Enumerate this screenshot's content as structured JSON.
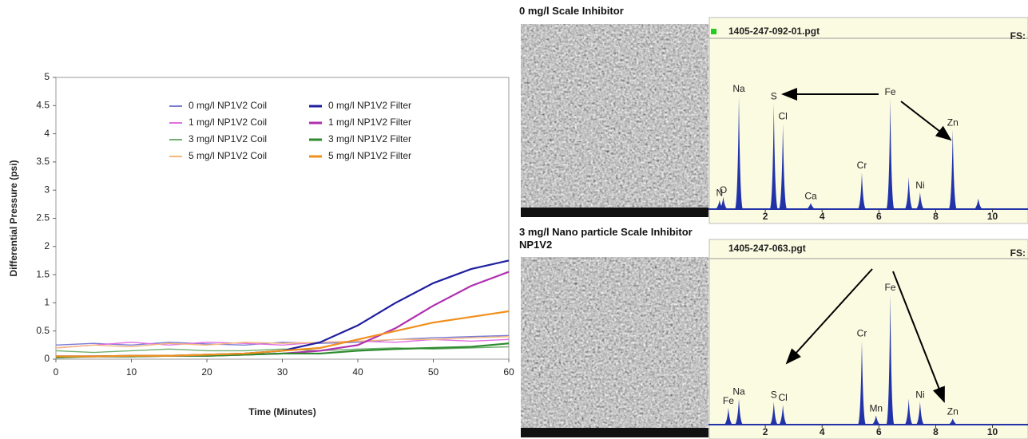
{
  "chart_data": [
    {
      "type": "line",
      "ylabel": "Differential Pressure (psi)",
      "xlabel": "Time (Minutes)",
      "x": [
        0,
        5,
        10,
        15,
        20,
        25,
        30,
        35,
        40,
        45,
        50,
        55,
        60
      ],
      "xlim": [
        0,
        60
      ],
      "xticks": [
        0,
        10,
        20,
        30,
        40,
        50,
        60
      ],
      "ylim": [
        0,
        5
      ],
      "yticks": [
        0,
        0.5,
        1,
        1.5,
        2,
        2.5,
        3,
        3.5,
        4,
        4.5,
        5
      ],
      "legend": "upper center",
      "series": [
        {
          "name": "0 mg/l NP1V2 Coil",
          "color": "#7b7bd6",
          "values": [
            0.25,
            0.28,
            0.25,
            0.3,
            0.27,
            0.25,
            0.3,
            0.28,
            0.3,
            0.35,
            0.38,
            0.4,
            0.42
          ]
        },
        {
          "name": "1 mg/l NP1V2 Coil",
          "color": "#e070e0",
          "values": [
            0.2,
            0.25,
            0.3,
            0.25,
            0.3,
            0.28,
            0.25,
            0.3,
            0.32,
            0.3,
            0.35,
            0.32,
            0.35
          ]
        },
        {
          "name": "3 mg/l NP1V2 Coil",
          "color": "#70b070",
          "values": [
            0.15,
            0.12,
            0.15,
            0.18,
            0.15,
            0.15,
            0.18,
            0.15,
            0.18,
            0.2,
            0.18,
            0.2,
            0.22
          ]
        },
        {
          "name": "5 mg/l NP1V2 Coil",
          "color": "#f5b87a",
          "values": [
            0.2,
            0.25,
            0.22,
            0.28,
            0.25,
            0.3,
            0.28,
            0.3,
            0.32,
            0.35,
            0.35,
            0.38,
            0.4
          ]
        },
        {
          "name": "0 mg/l NP1V2 Filter",
          "color": "#1f1fa0",
          "values": [
            0.05,
            0.05,
            0.06,
            0.06,
            0.08,
            0.1,
            0.15,
            0.3,
            0.6,
            1.0,
            1.35,
            1.6,
            1.75
          ]
        },
        {
          "name": "1 mg/l NP1V2 Filter",
          "color": "#b030b0",
          "values": [
            0.05,
            0.05,
            0.05,
            0.06,
            0.06,
            0.08,
            0.1,
            0.15,
            0.25,
            0.55,
            0.95,
            1.3,
            1.55
          ]
        },
        {
          "name": "3 mg/l NP1V2 Filter",
          "color": "#2e8b2e",
          "values": [
            0.03,
            0.05,
            0.05,
            0.06,
            0.06,
            0.08,
            0.1,
            0.1,
            0.15,
            0.18,
            0.2,
            0.22,
            0.28
          ]
        },
        {
          "name": "5 mg/l NP1V2 Filter",
          "color": "#f0901e",
          "values": [
            0.05,
            0.05,
            0.06,
            0.06,
            0.08,
            0.1,
            0.15,
            0.2,
            0.35,
            0.5,
            0.65,
            0.75,
            0.85
          ]
        }
      ]
    },
    {
      "type": "spectrum",
      "title": "0 mg/l Scale Inhibitor",
      "file": "1405-247-092-01.pgt",
      "scale_label": "FS:",
      "color": "#2233aa",
      "categories": [
        "N",
        "O",
        "Na",
        "S",
        "Cl",
        "Ca",
        "Cr",
        "Fe",
        null,
        "Ni",
        "Zn",
        null
      ],
      "x": [
        0.39,
        0.52,
        1.07,
        2.3,
        2.62,
        3.6,
        5.4,
        6.4,
        7.05,
        7.45,
        8.6,
        9.5
      ],
      "values": [
        6,
        8,
        74,
        69,
        56,
        4,
        24,
        72,
        21,
        11,
        52,
        7
      ],
      "xlim": [
        0,
        11.25
      ],
      "xticks": [
        2,
        4,
        6,
        8,
        10
      ],
      "ylim": [
        0,
        100
      ]
    },
    {
      "type": "spectrum",
      "title": "3 mg/l Nano particle Scale Inhibitor NP1V2",
      "file": "1405-247-063.pgt",
      "scale_label": "FS:",
      "color": "#2233aa",
      "categories": [
        "Fe",
        "Na",
        "S",
        "Cl",
        "Cr",
        "Mn",
        "Fe",
        null,
        "Ni",
        "Zn"
      ],
      "x": [
        0.7,
        1.07,
        2.3,
        2.62,
        5.4,
        5.9,
        6.4,
        7.05,
        7.45,
        8.6
      ],
      "values": [
        11,
        17,
        15,
        13,
        55,
        6,
        85,
        17,
        15,
        4
      ],
      "xlim": [
        0,
        11.25
      ],
      "xticks": [
        2,
        4,
        6,
        8,
        10
      ],
      "ylim": [
        0,
        100
      ]
    }
  ]
}
